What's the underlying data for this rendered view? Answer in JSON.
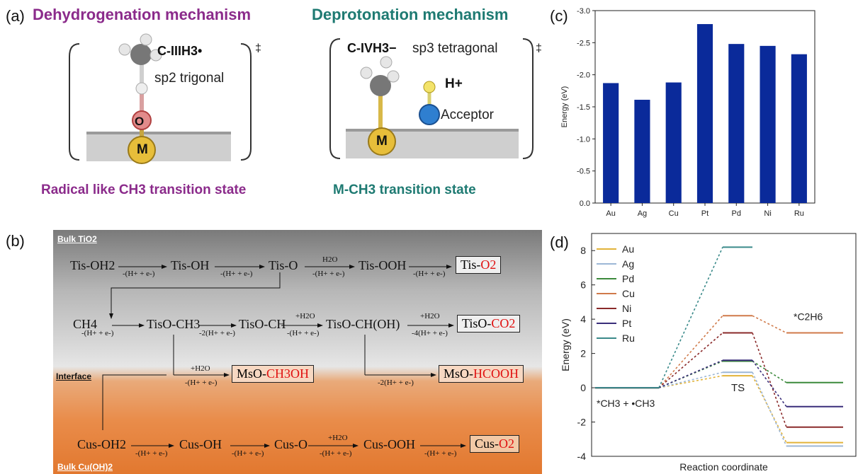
{
  "panel_a": {
    "letter": "(a)",
    "left_title": "Dehydrogenation mechanism",
    "right_title": "Deprotonation mechanism",
    "left_species": "C-IIIH3•",
    "left_hybrid": "sp2 trigonal",
    "right_species": "C-IVH3−",
    "right_hybrid": "sp3 tetragonal",
    "proton": "H+",
    "acceptor": "Acceptor",
    "dagger": "‡",
    "atom_o": "O",
    "atom_m": "M",
    "left_caption": "Radical like CH3 transition state",
    "right_caption": "M-CH3 transition state"
  },
  "panel_b": {
    "letter": "(b)",
    "bulk_top": "Bulk TiO2",
    "bulk_bottom": "Bulk Cu(OH)2",
    "interface": "Interface",
    "row1": [
      "Tis-OH2",
      "Tis-OH",
      "Tis-O",
      "Tis-OOH"
    ],
    "row1_product": "Tis-O2",
    "row2": [
      "CH4",
      "TisO-CH3",
      "TisO-CH",
      "TisO-CH(OH)"
    ],
    "row2_product": "TisO-CO2",
    "interface_products": [
      "MsO-CH3OH",
      "MsO-HCOOH"
    ],
    "row3": [
      "Cus-OH2",
      "Cus-OH",
      "Cus-O",
      "Cus-OOH"
    ],
    "row3_product": "Cus-O2",
    "step_labels": {
      "pce": "-(H+ + e-)",
      "two_pce": "-2(H+ + e-)",
      "four_pce": "-4(H+ + e-)",
      "water": "H2O",
      "plus_water": "+H2O"
    }
  },
  "panel_c": {
    "letter": "(c)",
    "chart_data": {
      "type": "bar",
      "categories": [
        "Au",
        "Ag",
        "Cu",
        "Pt",
        "Pd",
        "Ni",
        "Ru"
      ],
      "values": [
        -1.87,
        -1.61,
        -1.88,
        -2.79,
        -2.48,
        -2.45,
        -2.32
      ],
      "xlabel": "",
      "ylabel": "Energy (eV)",
      "ylim": [
        0,
        -3.0
      ],
      "y_inverted": true,
      "ticks": [
        0.0,
        -0.5,
        -1.0,
        -1.5,
        -2.0,
        -2.5,
        -3.0
      ],
      "tick_labels": [
        "0.0",
        "-0.5",
        "-1.0",
        "-1.5",
        "-2.0",
        "-2.5",
        "-3.0"
      ],
      "bar_color": "#0a2a9a",
      "grid": false
    }
  },
  "panel_d": {
    "letter": "(d)",
    "chart_data": {
      "type": "line",
      "xlabel": "Reaction coordinate",
      "ylabel": "Energy (eV)",
      "ylim": [
        -4,
        9
      ],
      "ticks": [
        -4,
        -2,
        0,
        2,
        4,
        6,
        8
      ],
      "stages": [
        "*CH3 + •CH3",
        "TS",
        "*C2H6"
      ],
      "legend_position": "top-left",
      "grid": false,
      "series": [
        {
          "name": "Au",
          "color": "#e2b33a",
          "values": [
            0,
            0.7,
            -3.2
          ]
        },
        {
          "name": "Ag",
          "color": "#9db7d6",
          "values": [
            0,
            0.9,
            -3.4
          ]
        },
        {
          "name": "Pd",
          "color": "#3c8a3c",
          "values": [
            0,
            1.55,
            0.3
          ]
        },
        {
          "name": "Cu",
          "color": "#d07a4a",
          "values": [
            0,
            4.2,
            3.2
          ]
        },
        {
          "name": "Ni",
          "color": "#8a2a2a",
          "values": [
            0,
            3.2,
            -2.3
          ]
        },
        {
          "name": "Pt",
          "color": "#3a2e7a",
          "values": [
            0,
            1.6,
            -1.1
          ]
        },
        {
          "name": "Ru",
          "color": "#3a8a8a",
          "values": [
            0,
            8.2,
            null
          ]
        }
      ]
    }
  }
}
